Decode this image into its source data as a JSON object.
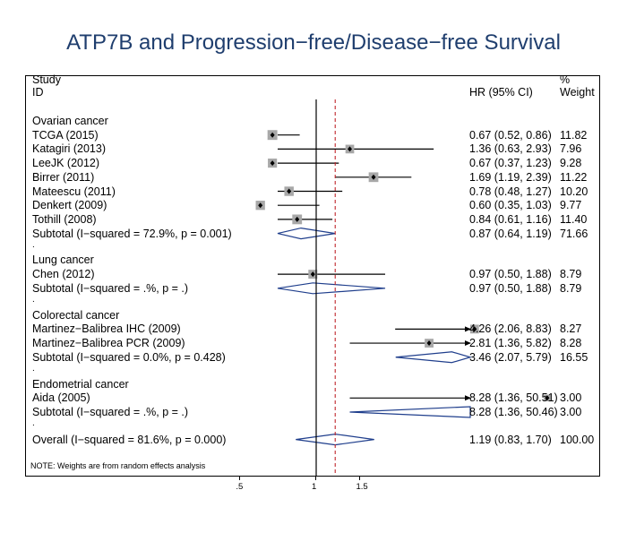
{
  "chart_data": {
    "type": "forest",
    "title": "ATP7B and Progression−free/Disease−free Survival",
    "headers": {
      "study_line1": "Study",
      "study_line2": "ID",
      "estimate": "HR (95% CI)",
      "weight_line1": "%",
      "weight_line2": "Weight"
    },
    "groups": [
      {
        "name": "Ovarian cancer",
        "studies": [
          {
            "label": "TCGA (2015)",
            "hr": 0.67,
            "lo": 0.52,
            "hi": 0.86,
            "text": "0.67 (0.52, 0.86)",
            "weight": "11.82"
          },
          {
            "label": "Katagiri (2013)",
            "hr": 1.36,
            "lo": 0.63,
            "hi": 2.93,
            "text": "1.36 (0.63, 2.93)",
            "weight": "7.96"
          },
          {
            "label": "LeeJK (2012)",
            "hr": 0.67,
            "lo": 0.37,
            "hi": 1.23,
            "text": "0.67 (0.37, 1.23)",
            "weight": "9.28"
          },
          {
            "label": "Birrer (2011)",
            "hr": 1.69,
            "lo": 1.19,
            "hi": 2.39,
            "text": "1.69 (1.19, 2.39)",
            "weight": "11.22"
          },
          {
            "label": "Mateescu (2011)",
            "hr": 0.78,
            "lo": 0.48,
            "hi": 1.27,
            "text": "0.78 (0.48, 1.27)",
            "weight": "10.20"
          },
          {
            "label": "Denkert (2009)",
            "hr": 0.6,
            "lo": 0.35,
            "hi": 1.03,
            "text": "0.60 (0.35, 1.03)",
            "weight": "9.77"
          },
          {
            "label": "Tothill (2008)",
            "hr": 0.84,
            "lo": 0.61,
            "hi": 1.16,
            "text": "0.84 (0.61, 1.16)",
            "weight": "11.40"
          }
        ],
        "subtotal": {
          "label": "Subtotal  (I−squared = 72.9%, p = 0.001)",
          "hr": 0.87,
          "lo": 0.64,
          "hi": 1.19,
          "text": "0.87 (0.64, 1.19)",
          "weight": "71.66"
        }
      },
      {
        "name": "Lung cancer",
        "studies": [
          {
            "label": "Chen (2012)",
            "hr": 0.97,
            "lo": 0.5,
            "hi": 1.88,
            "text": "0.97 (0.50, 1.88)",
            "weight": "8.79"
          }
        ],
        "subtotal": {
          "label": "Subtotal  (I−squared = .%, p = .)",
          "hr": 0.97,
          "lo": 0.5,
          "hi": 1.88,
          "text": "0.97 (0.50, 1.88)",
          "weight": "8.79"
        }
      },
      {
        "name": "Colorectal cancer",
        "studies": [
          {
            "label": "Martinez−Balibrea IHC (2009)",
            "hr": 4.26,
            "lo": 2.06,
            "hi": 8.83,
            "text": "4.26 (2.06, 8.83)",
            "weight": "8.27"
          },
          {
            "label": "Martinez−Balibrea PCR (2009)",
            "hr": 2.81,
            "lo": 1.36,
            "hi": 5.82,
            "text": "2.81 (1.36, 5.82)",
            "weight": "8.28"
          }
        ],
        "subtotal": {
          "label": "Subtotal  (I−squared = 0.0%, p = 0.428)",
          "hr": 3.46,
          "lo": 2.07,
          "hi": 5.79,
          "text": "3.46 (2.07, 5.79)",
          "weight": "16.55"
        }
      },
      {
        "name": "Endometrial cancer",
        "studies": [
          {
            "label": "Aida (2005)",
            "hr": 8.28,
            "lo": 1.36,
            "hi": 50.51,
            "text": "8.28 (1.36, 50.51)",
            "weight": "3.00",
            "arrow": true
          }
        ],
        "subtotal": {
          "label": "Subtotal  (I−squared = .%, p = .)",
          "hr": 8.28,
          "lo": 1.36,
          "hi": 50.46,
          "text": "8.28 (1.36, 50.46)",
          "weight": "3.00",
          "arrow": true
        }
      }
    ],
    "overall": {
      "label": "Overall  (I−squared = 81.6%, p = 0.000)",
      "hr": 1.19,
      "lo": 0.83,
      "hi": 1.7,
      "text": "1.19 (0.83, 1.70)",
      "weight": "100.00"
    },
    "note": "NOTE: Weights are from random effects analysis",
    "x_ticks": [
      0.5,
      1,
      1.5
    ],
    "x_tick_labels": [
      ".5",
      "1",
      "1.5"
    ],
    "x_scale": "log",
    "null_line": 1,
    "row_spacer": "."
  }
}
